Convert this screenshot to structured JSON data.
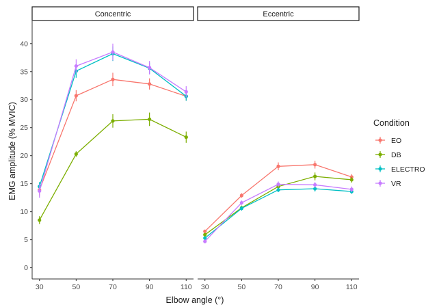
{
  "chart_data": {
    "type": "line",
    "xlabel": "Elbow angle (°)",
    "ylabel": "EMG amplitude (% MVIC)",
    "ylim": [
      -2,
      44
    ],
    "yticks": [
      0,
      5,
      10,
      15,
      20,
      25,
      30,
      35,
      40
    ],
    "x_ticks": [
      30,
      50,
      70,
      90,
      110
    ],
    "xlim": [
      26,
      114
    ],
    "grid": false,
    "legend": {
      "title": "Condition",
      "position": "right",
      "entries": [
        "EO",
        "DB",
        "ELECTRO",
        "VR"
      ]
    },
    "colors": {
      "EO": "#F8766D",
      "DB": "#7CAE00",
      "ELECTRO": "#00BFC4",
      "VR": "#C77CFF"
    },
    "panels": [
      {
        "title": "Concentric",
        "series": [
          {
            "name": "EO",
            "x": [
              30,
              50,
              70,
              90,
              110
            ],
            "y": [
              13.9,
              30.7,
              33.6,
              32.8,
              30.6
            ],
            "err": [
              1.0,
              1.0,
              1.2,
              1.0,
              0.8
            ]
          },
          {
            "name": "DB",
            "x": [
              30,
              50,
              70,
              90,
              110
            ],
            "y": [
              8.5,
              20.3,
              26.2,
              26.5,
              23.3
            ],
            "err": [
              0.7,
              0.5,
              1.2,
              1.2,
              1.0
            ]
          },
          {
            "name": "ELECTRO",
            "x": [
              30,
              50,
              70,
              90,
              110
            ],
            "y": [
              14.5,
              35.1,
              38.2,
              35.6,
              30.6
            ],
            "err": [
              0.8,
              1.2,
              1.3,
              1.0,
              0.8
            ]
          },
          {
            "name": "VR",
            "x": [
              30,
              50,
              70,
              90,
              110
            ],
            "y": [
              13.7,
              36.0,
              38.5,
              35.7,
              31.4
            ],
            "err": [
              1.2,
              1.2,
              1.5,
              1.2,
              1.0
            ]
          }
        ]
      },
      {
        "title": "Eccentric",
        "series": [
          {
            "name": "EO",
            "x": [
              30,
              50,
              70,
              90,
              110
            ],
            "y": [
              6.5,
              12.9,
              18.1,
              18.4,
              16.2
            ],
            "err": [
              0.3,
              0.4,
              0.7,
              0.7,
              0.5
            ]
          },
          {
            "name": "DB",
            "x": [
              30,
              50,
              70,
              90,
              110
            ],
            "y": [
              5.9,
              10.7,
              14.5,
              16.3,
              15.7
            ],
            "err": [
              0.3,
              0.4,
              0.5,
              0.7,
              0.5
            ]
          },
          {
            "name": "ELECTRO",
            "x": [
              30,
              50,
              70,
              90,
              110
            ],
            "y": [
              5.3,
              10.6,
              13.9,
              14.1,
              13.6
            ],
            "err": [
              0.3,
              0.4,
              0.4,
              0.5,
              0.4
            ]
          },
          {
            "name": "VR",
            "x": [
              30,
              50,
              70,
              90,
              110
            ],
            "y": [
              4.7,
              11.6,
              14.9,
              14.8,
              14.0
            ],
            "err": [
              0.3,
              0.4,
              0.5,
              0.5,
              0.5
            ]
          }
        ]
      }
    ]
  }
}
